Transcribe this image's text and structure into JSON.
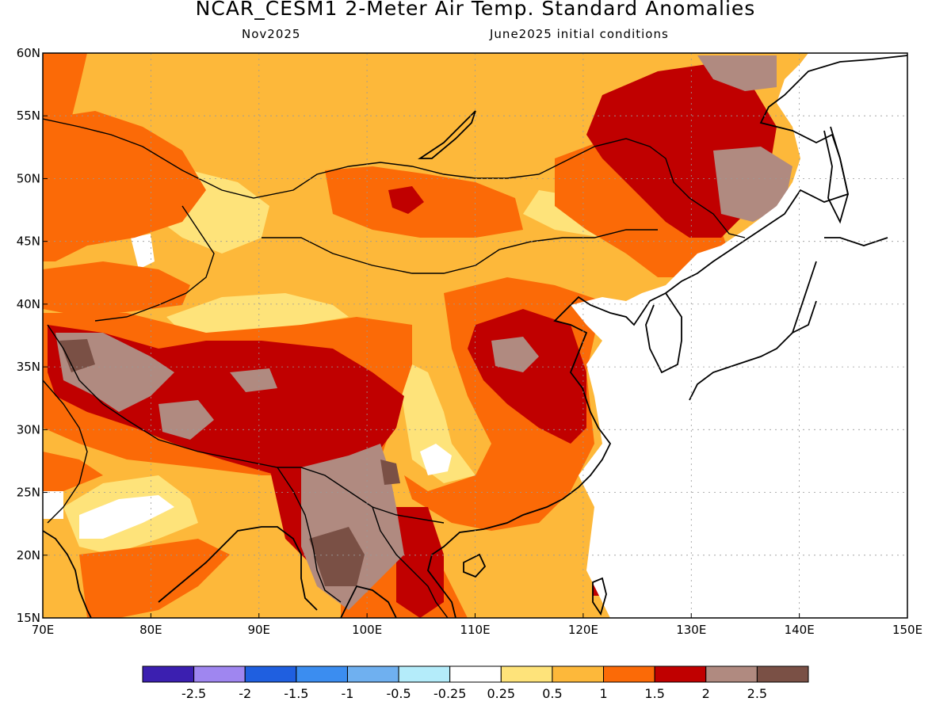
{
  "header": {
    "title": "NCAR_CESM1 2-Meter Air Temp. Standard Anomalies",
    "valid": "Nov2025",
    "init": "June2025 initial conditions"
  },
  "axes": {
    "lon_ticks": [
      "70E",
      "80E",
      "90E",
      "100E",
      "110E",
      "120E",
      "130E",
      "140E",
      "150E"
    ],
    "lat_ticks": [
      "15N",
      "20N",
      "25N",
      "30N",
      "35N",
      "40N",
      "45N",
      "50N",
      "55N",
      "60N"
    ]
  },
  "colorbar": {
    "colors": [
      "#3b1fb0",
      "#9f86f0",
      "#1f5fe0",
      "#3b8df0",
      "#6fb0f0",
      "#b4ecfa",
      "#ffffff",
      "#fee37a",
      "#fdb83a",
      "#fb6a07",
      "#c00000",
      "#b08a80",
      "#7a5045"
    ],
    "labels": [
      "-2.5",
      "-2",
      "-1.5",
      "-1",
      "-0.5",
      "-0.25",
      "0.25",
      "0.5",
      "1",
      "1.5",
      "2",
      "2.5"
    ]
  },
  "map_colors": {
    "c05": "#fee37a",
    "c1": "#fdb83a",
    "c15": "#fb6a07",
    "c2": "#c00000",
    "c25": "#b08a80",
    "c3": "#7a5045",
    "white": "#ffffff",
    "coast": "#000000"
  }
}
